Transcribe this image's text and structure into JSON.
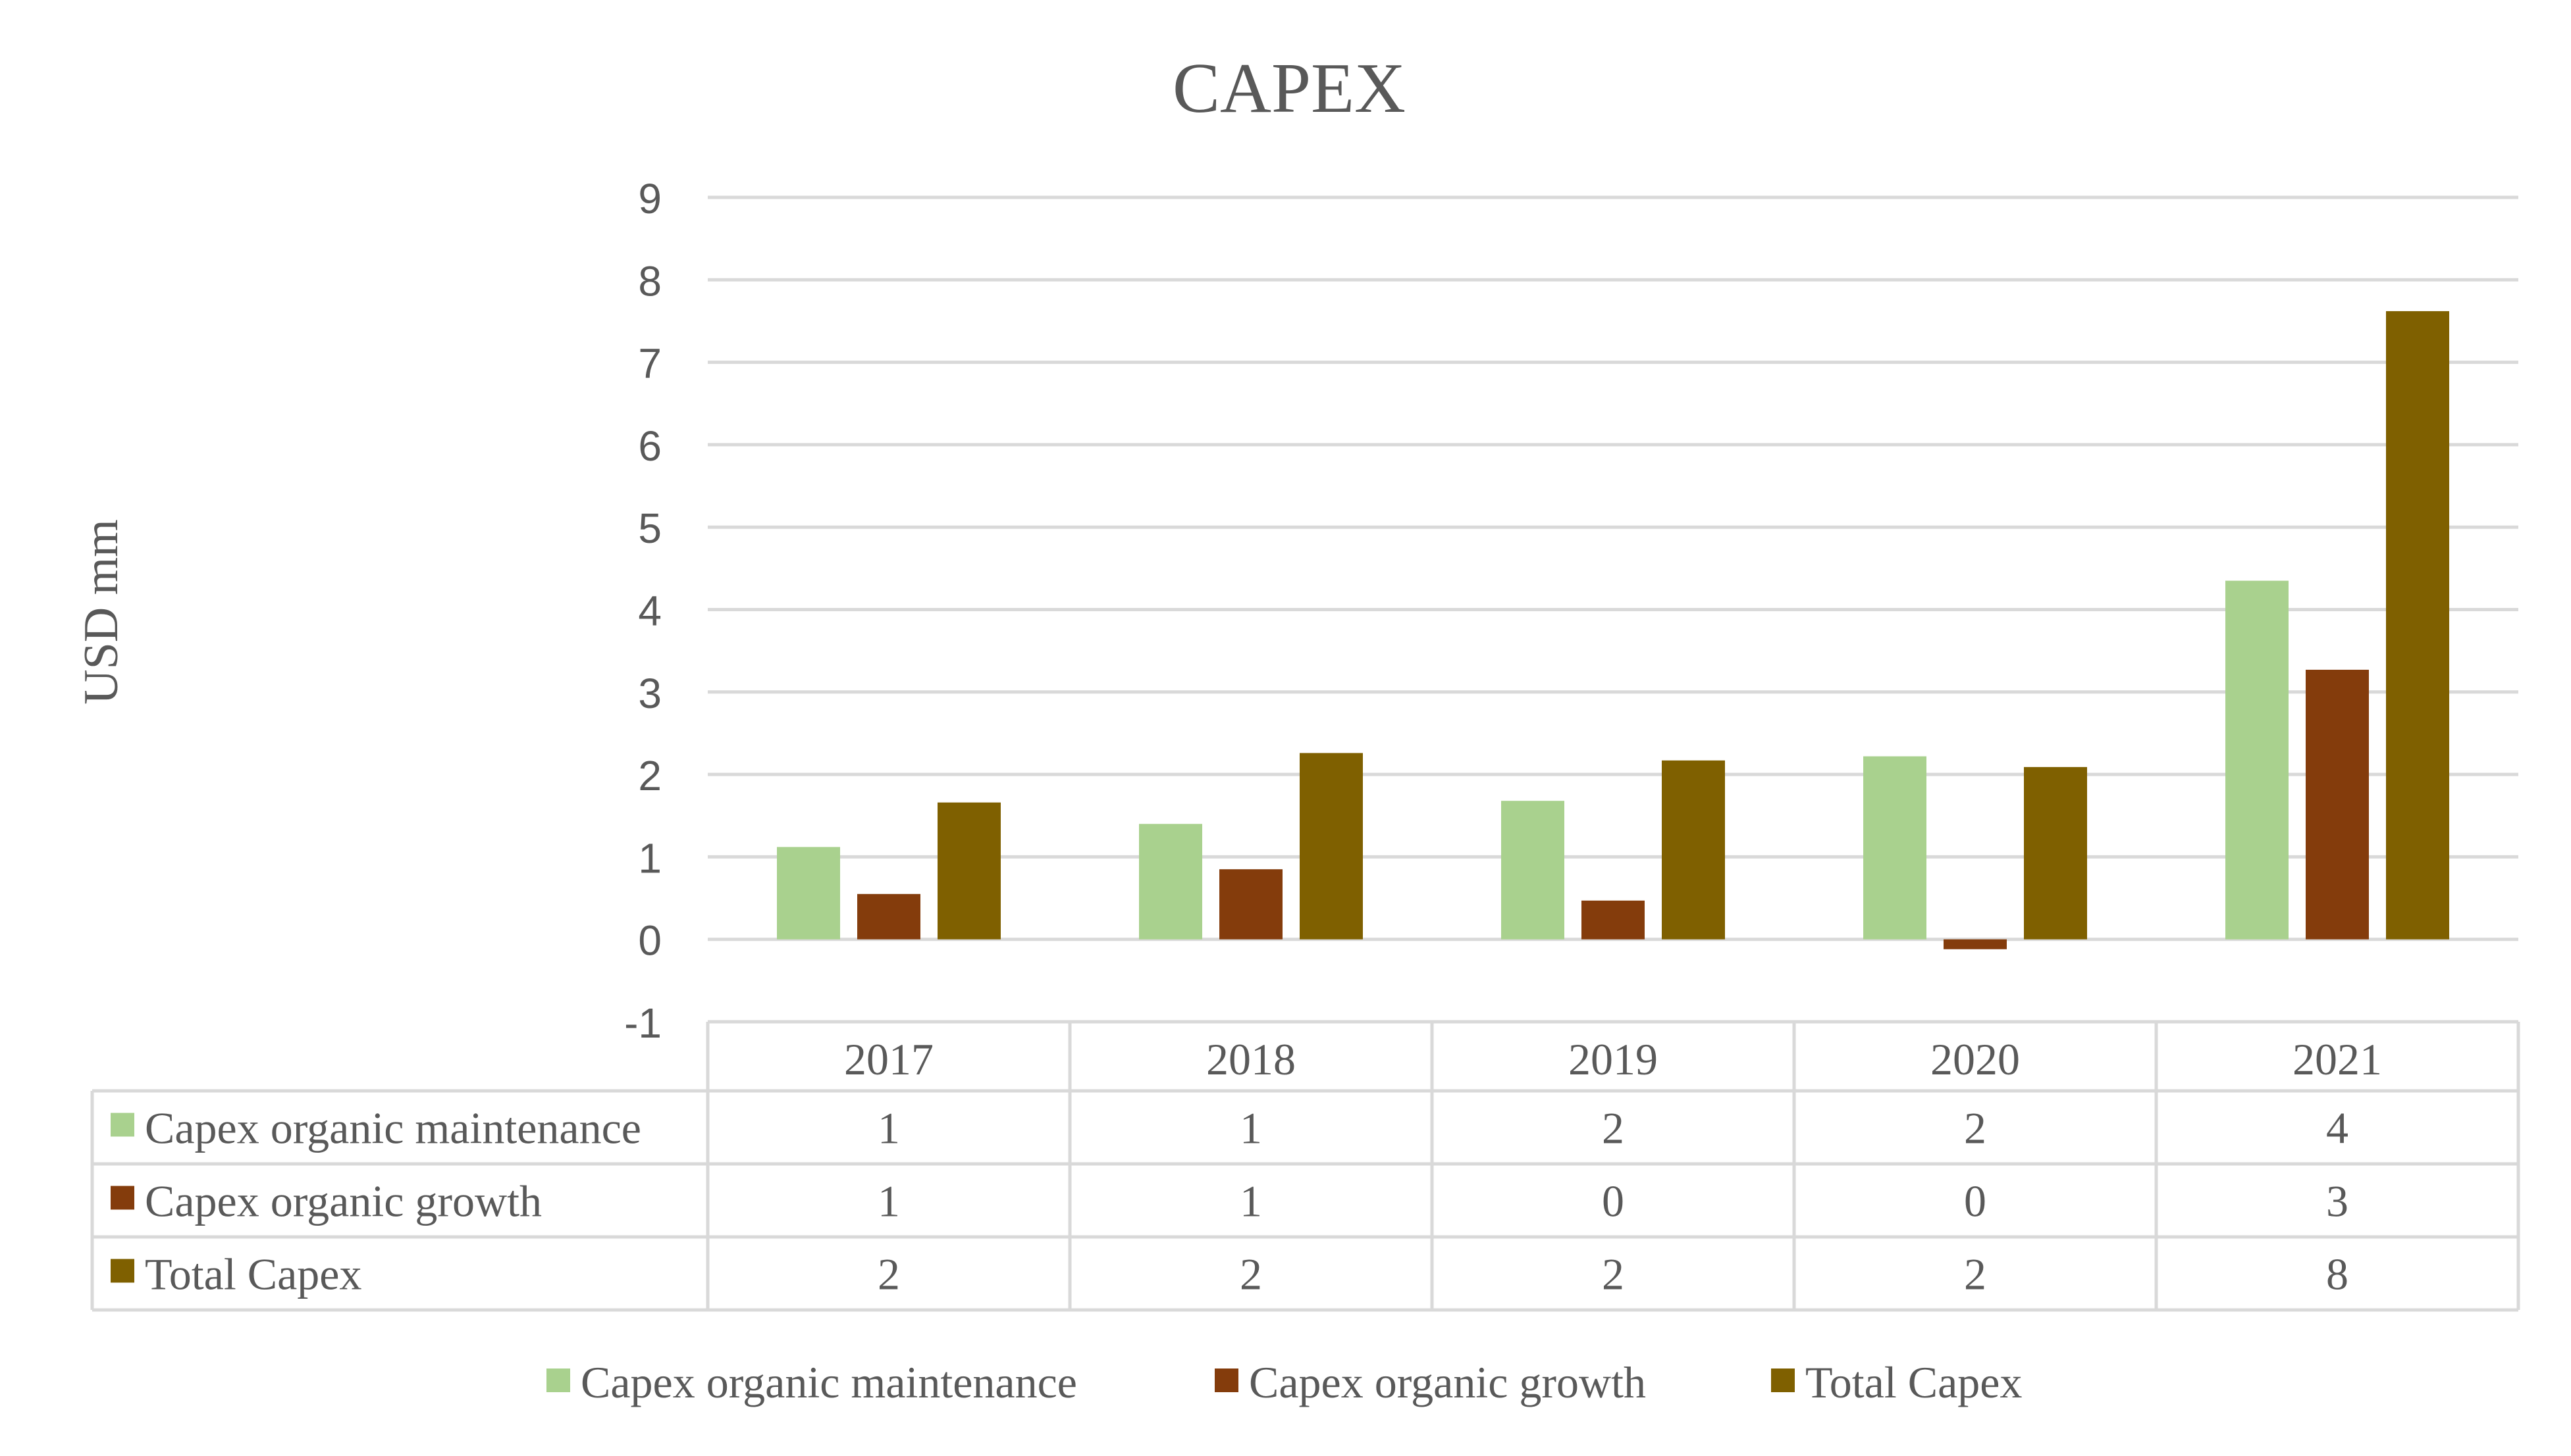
{
  "chart_data": {
    "type": "bar",
    "title": "CAPEX",
    "xlabel": "",
    "ylabel": "USD mm",
    "categories": [
      "2017",
      "2018",
      "2019",
      "2020",
      "2021"
    ],
    "ylim": [
      -1,
      9
    ],
    "yticks": [
      "9",
      "8",
      "7",
      "6",
      "5",
      "4",
      "3",
      "2",
      "1",
      "0",
      "-1"
    ],
    "grid": true,
    "legend_position": "bottom",
    "series": [
      {
        "name": "Capex organic maintenance",
        "color": "#a9d18e",
        "values": [
          1.12,
          1.4,
          1.68,
          2.22,
          4.35
        ],
        "table_labels": [
          "1",
          "1",
          "2",
          "2",
          "4"
        ]
      },
      {
        "name": "Capex organic growth",
        "color": "#843c0c",
        "values": [
          0.55,
          0.85,
          0.47,
          -0.12,
          3.27
        ],
        "table_labels": [
          "1",
          "1",
          "0",
          "0",
          "3"
        ]
      },
      {
        "name": "Total Capex",
        "color": "#7f6000",
        "values": [
          1.66,
          2.26,
          2.17,
          2.09,
          7.62
        ],
        "table_labels": [
          "2",
          "2",
          "2",
          "2",
          "8"
        ]
      }
    ]
  }
}
